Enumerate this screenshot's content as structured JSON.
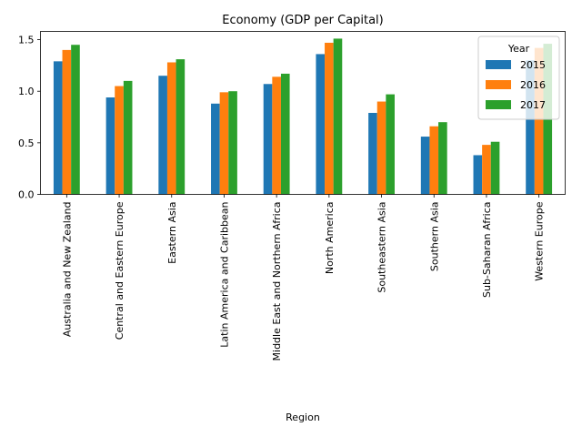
{
  "chart_data": {
    "type": "bar",
    "title": "Economy (GDP per Capital)",
    "xlabel": "Region",
    "ylabel": "",
    "ylim": [
      0,
      1.58
    ],
    "yticks": [
      "0.0",
      "0.5",
      "1.0",
      "1.5"
    ],
    "grid": false,
    "legend": {
      "title": "Year",
      "placement": "top-right"
    },
    "categories": [
      "Australia and New Zealand",
      "Central and Eastern Europe",
      "Eastern Asia",
      "Latin America and Caribbean",
      "Middle East and Northern Africa",
      "North America",
      "Southeastern Asia",
      "Southern Asia",
      "Sub-Saharan Africa",
      "Western Europe"
    ],
    "series": [
      {
        "name": "2015",
        "color": "#1f77b4",
        "values": [
          1.29,
          0.94,
          1.15,
          0.88,
          1.07,
          1.36,
          0.79,
          0.56,
          0.38,
          1.3
        ]
      },
      {
        "name": "2016",
        "color": "#ff7f0e",
        "values": [
          1.4,
          1.05,
          1.28,
          0.99,
          1.14,
          1.47,
          0.9,
          0.66,
          0.48,
          1.42
        ]
      },
      {
        "name": "2017",
        "color": "#2ca02c",
        "values": [
          1.45,
          1.1,
          1.31,
          1.0,
          1.17,
          1.51,
          0.97,
          0.7,
          0.51,
          1.46
        ]
      }
    ]
  }
}
